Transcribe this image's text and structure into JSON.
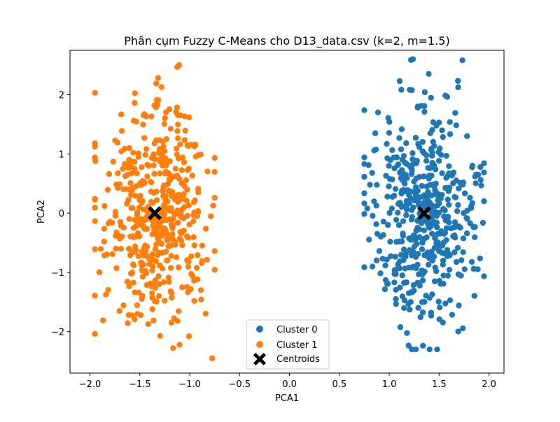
{
  "chart_data": {
    "type": "scatter",
    "title": "Phân cụm Fuzzy C-Means cho D13_data.csv (k=2, m=1.5)",
    "xlabel": "PCA1",
    "ylabel": "PCA2",
    "xlim": [
      -2.2,
      2.15
    ],
    "ylim": [
      -2.7,
      2.75
    ],
    "x_ticks": [
      -2.0,
      -1.5,
      -1.0,
      -0.5,
      0.0,
      0.5,
      1.0,
      1.5,
      2.0
    ],
    "x_tick_labels": [
      "−2.0",
      "−1.5",
      "−1.0",
      "−0.5",
      "0.0",
      "0.5",
      "1.0",
      "1.5",
      "2.0"
    ],
    "y_ticks": [
      -2,
      -1,
      0,
      1,
      2
    ],
    "y_tick_labels": [
      "−2",
      "−1",
      "0",
      "1",
      "2"
    ],
    "grid": false,
    "legend_position": "bottom-center",
    "series": [
      {
        "name": "Cluster 0",
        "color": "#1f77b4",
        "marker": "circle",
        "center": [
          1.35,
          0.0
        ],
        "spread": [
          0.26,
          0.95
        ],
        "x_range": [
          0.75,
          1.95
        ],
        "y_range": [
          -2.3,
          2.6
        ],
        "n_points": 500
      },
      {
        "name": "Cluster 1",
        "color": "#ff7f0e",
        "marker": "circle",
        "center": [
          -1.35,
          0.0
        ],
        "spread": [
          0.26,
          0.95
        ],
        "x_range": [
          -1.95,
          -0.75
        ],
        "y_range": [
          -2.45,
          2.5
        ],
        "n_points": 500
      }
    ],
    "centroids": {
      "name": "Centroids",
      "color": "#000000",
      "marker": "X",
      "points": [
        [
          1.35,
          0.0
        ],
        [
          -1.35,
          0.0
        ]
      ]
    }
  }
}
